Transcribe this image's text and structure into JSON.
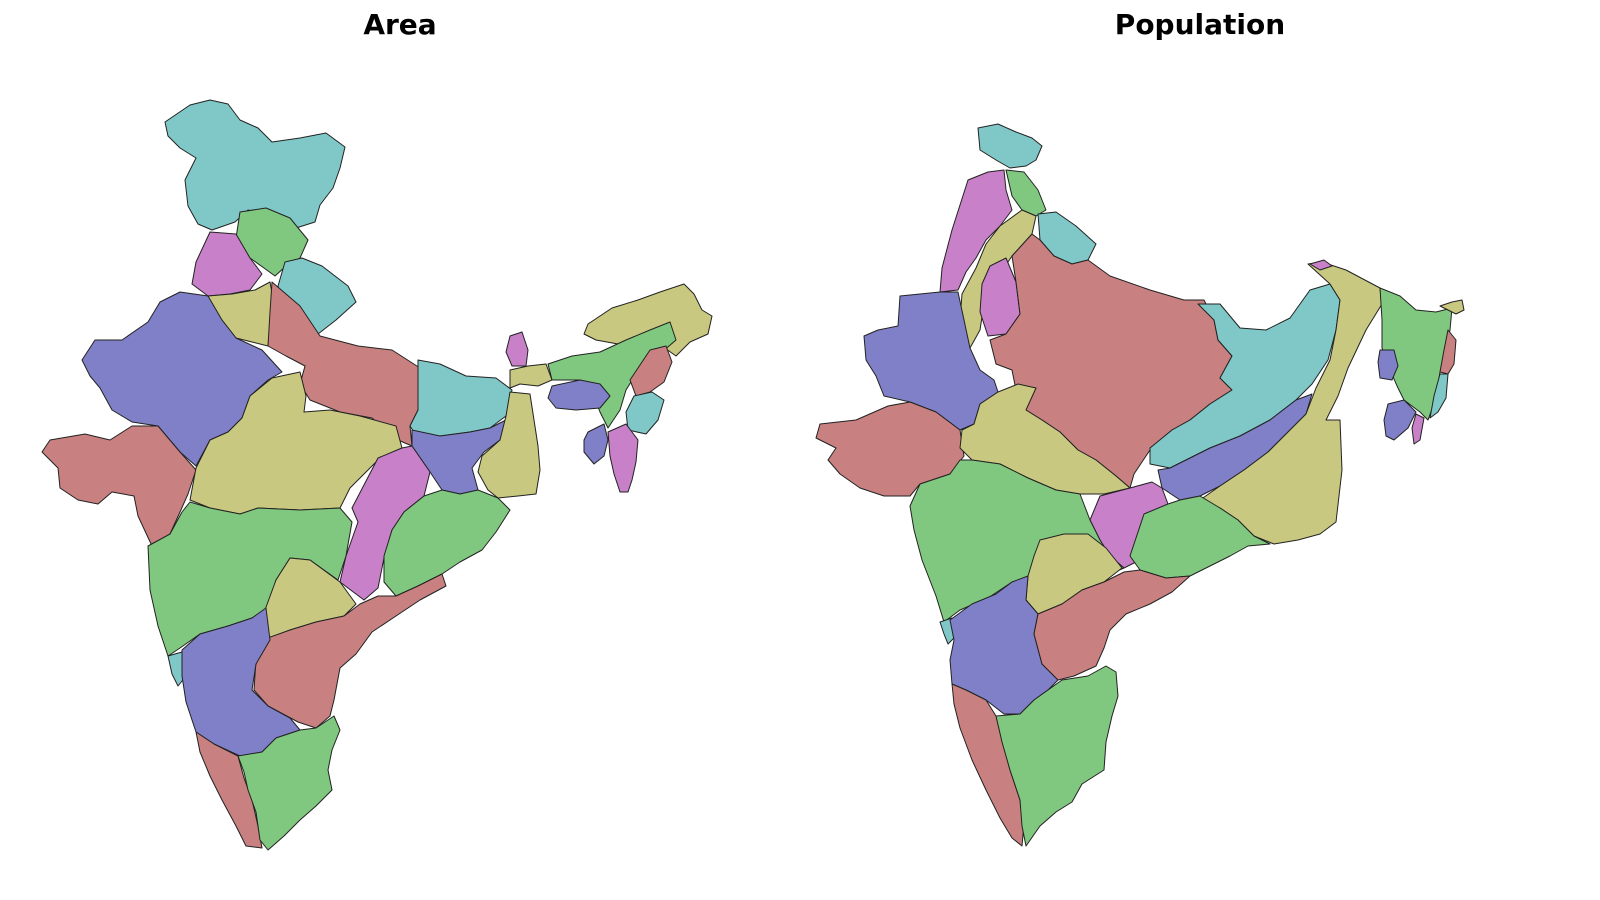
{
  "titles": {
    "area": "Area",
    "population": "Population"
  },
  "palette": {
    "teal": "#80c8c8",
    "green": "#80c880",
    "magenta": "#c880c8",
    "olive": "#c8c880",
    "blue": "#8080c8",
    "red": "#c88080"
  }
}
